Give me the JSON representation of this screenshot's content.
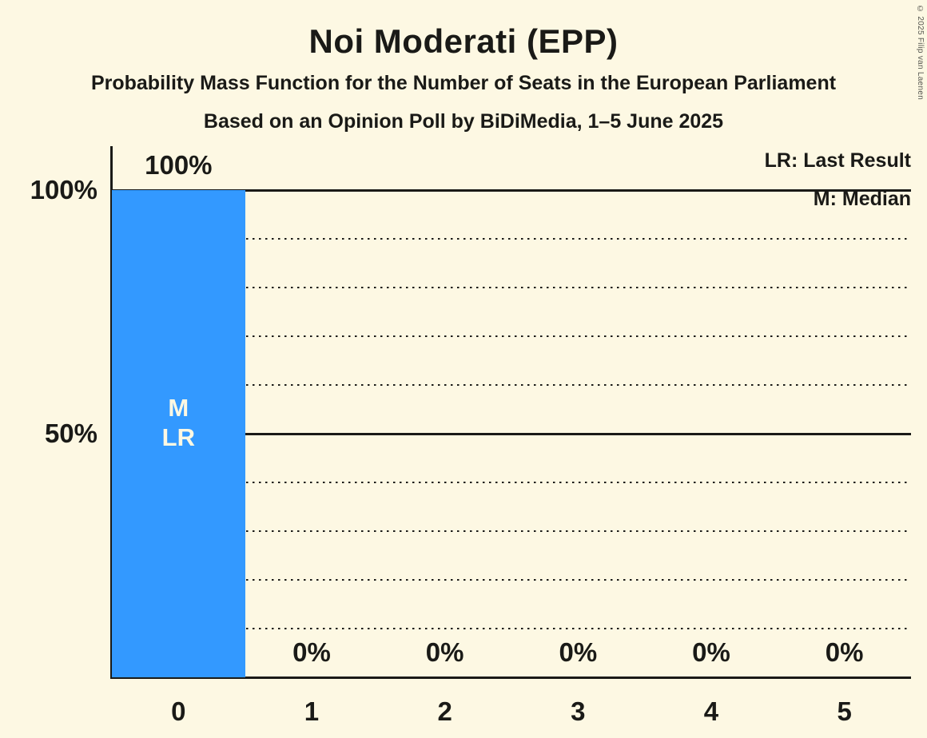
{
  "header": {
    "title": "Noi Moderati (EPP)",
    "subtitle1": "Probability Mass Function for the Number of Seats in the European Parliament",
    "subtitle2": "Based on an Opinion Poll by BiDiMedia, 1–5 June 2025"
  },
  "legend": {
    "last_result": "LR: Last Result",
    "median": "M: Median"
  },
  "copyright": "© 2025 Filip van Laenen",
  "chart_data": {
    "type": "bar",
    "title": "Noi Moderati (EPP)",
    "xlabel": "Number of Seats in the European Parliament",
    "ylabel": "Probability Mass",
    "categories": [
      "0",
      "1",
      "2",
      "3",
      "4",
      "5"
    ],
    "values": [
      100,
      0,
      0,
      0,
      0,
      0
    ],
    "bar_labels": [
      "100%",
      "0%",
      "0%",
      "0%",
      "0%",
      "0%"
    ],
    "ylim": [
      0,
      100
    ],
    "y_ticks": [
      {
        "value": 100,
        "label": "100%"
      },
      {
        "value": 50,
        "label": "50%"
      }
    ],
    "solid_gridlines": [
      100,
      50
    ],
    "dotted_gridlines": [
      90,
      80,
      70,
      60,
      40,
      30,
      20,
      10
    ],
    "annotations": [
      {
        "category_index": 0,
        "lines": [
          "M",
          "LR"
        ]
      }
    ],
    "legend_position": "top-right",
    "grid": "horizontal-dotted",
    "colors": {
      "bar": "#3399ff",
      "background": "#fdf8e3",
      "text": "#1a1a17",
      "annotation_text": "#fdf8e3"
    }
  }
}
